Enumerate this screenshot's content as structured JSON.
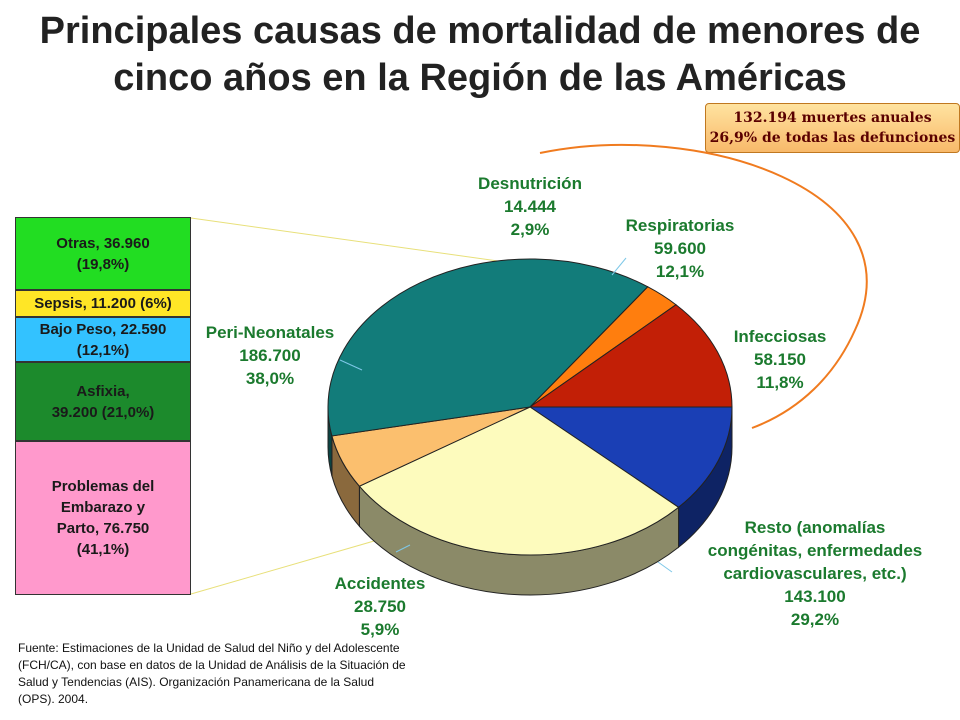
{
  "title": "Principales causas de mortalidad de menores de cinco años en la Región de las Américas",
  "callout": {
    "line1": "132.194 muertes anuales",
    "line2": "26,9% de todas las defunciones"
  },
  "colors": {
    "title": "#222222",
    "labels": "#1b7a2e",
    "arc": "#f07b1f"
  },
  "chart_data": {
    "type": "pie",
    "title": "Principales causas de mortalidad de menores de cinco años en la Región de las Américas",
    "unit": "muertes",
    "slices": [
      {
        "key": "infecciosas",
        "name": "Infecciosas",
        "value_label": "58.150",
        "pct_label": "11,8%",
        "value": 58150,
        "pct": 11.8,
        "color": "#1a3fb5"
      },
      {
        "key": "resto",
        "name": "Resto (anomalías congénitas, enfermedades cardiovasculares, etc.)",
        "name_lines": [
          "Resto (anomalías",
          "congénitas, enfermedades",
          "cardiovasculares, etc.)"
        ],
        "value_label": "143.100",
        "pct_label": "29,2%",
        "value": 143100,
        "pct": 29.2,
        "color": "#fdfbbd"
      },
      {
        "key": "accidentes",
        "name": "Accidentes",
        "value_label": "28.750",
        "pct_label": "5,9%",
        "value": 28750,
        "pct": 5.9,
        "color": "#fbbf6e"
      },
      {
        "key": "peri",
        "name": "Peri-Neonatales",
        "value_label": "186.700",
        "pct_label": "38,0%",
        "value": 186700,
        "pct": 38.0,
        "color": "#127c7a"
      },
      {
        "key": "desnutricion",
        "name": "Desnutrición",
        "value_label": "14.444",
        "pct_label": "2,9%",
        "value": 14444,
        "pct": 2.9,
        "color": "#ff7e0e"
      },
      {
        "key": "respiratorias",
        "name": "Respiratorias",
        "value_label": "59.600",
        "pct_label": "12,1%",
        "value": 59600,
        "pct": 12.1,
        "color": "#c21f06"
      }
    ],
    "breakdown": {
      "of": "Peri-Neonatales",
      "items": [
        {
          "line1": "Otras, 36.960",
          "line2": "(19,8%)",
          "value": 36960,
          "pct": 19.8,
          "color": "#22dd22"
        },
        {
          "line1": "Sepsis, 11.200 (6%)",
          "line2": "",
          "value": 11200,
          "pct": 6,
          "color": "#ffe626"
        },
        {
          "line1": "Bajo Peso, 22.590",
          "line2": "(12,1%)",
          "value": 22590,
          "pct": 12.1,
          "color": "#33c2ff"
        },
        {
          "line1": "Asfixia,",
          "line2": "39.200 (21,0%)",
          "value": 39200,
          "pct": 21.0,
          "color": "#1c8a2c"
        },
        {
          "line1": "Problemas del Embarazo y",
          "line2": "Parto, 76.750 (41,1%)",
          "lines": [
            "Problemas del",
            "Embarazo y",
            "Parto, 76.750",
            "(41,1%)"
          ],
          "value": 76750,
          "pct": 41.1,
          "color": "#ff99cc"
        }
      ]
    }
  },
  "source": "Fuente: Estimaciones de la Unidad de Salud del Niño y del Adolescente (FCH/CA), con base en datos de la Unidad de Análisis de la Situación de Salud y Tendencias (AIS). Organización Panamericana de la Salud (OPS). 2004."
}
